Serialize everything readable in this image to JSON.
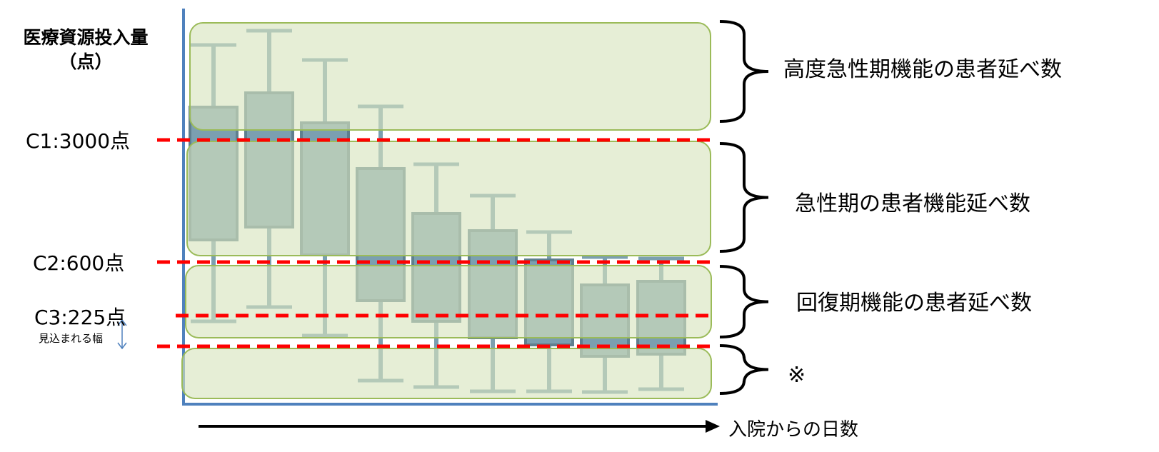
{
  "diagram": {
    "y_axis_label": "医療資源投入量",
    "y_axis_unit": "（点）",
    "x_axis_label": "入院からの日数",
    "thresholds": [
      {
        "label": "C1:3000点",
        "color": "#ff0000"
      },
      {
        "label": "C2:600点",
        "color": "#ff0000"
      },
      {
        "label": "C3:225点",
        "color": "#ff0000"
      }
    ],
    "expected_range_note": "見込まれる幅",
    "categories": [
      {
        "label": "高度急性期機能の患者延べ数"
      },
      {
        "label": "急性期の患者機能延べ数"
      },
      {
        "label": "回復期機能の患者延べ数"
      },
      {
        "label": "※"
      }
    ],
    "colors": {
      "axis": "#4f81bd",
      "box_fill": "#7b9fb0",
      "box_border": "#5f7f8e",
      "zone_fill": "#d7e4bd",
      "zone_border": "#9bbb59",
      "threshold": "#ff0000"
    }
  }
}
